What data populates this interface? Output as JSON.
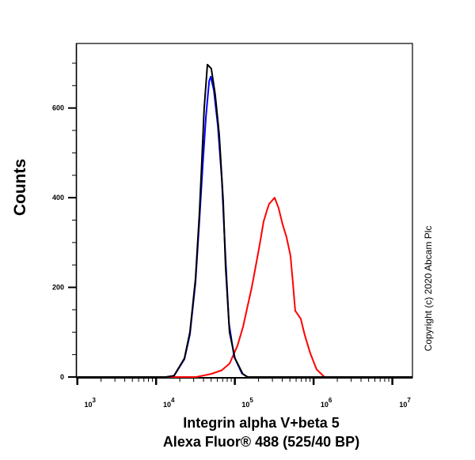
{
  "chart_data": {
    "type": "line",
    "title": "",
    "xlabel": [
      "Integrin alpha V+beta 5",
      "Alexa Fluor® 488  (525/40 BP)"
    ],
    "ylabel": "Counts",
    "xscale": "log",
    "xlim": [
      1000,
      18000000
    ],
    "ylim": [
      0,
      744
    ],
    "x_ticks": [
      {
        "base": "10",
        "exp": "3",
        "value": 1000
      },
      {
        "base": "10",
        "exp": "4",
        "value": 10000
      },
      {
        "base": "10",
        "exp": "5",
        "value": 100000
      },
      {
        "base": "10",
        "exp": "6",
        "value": 1000000
      },
      {
        "base": "10",
        "exp": "7",
        "value": 10000000
      }
    ],
    "y_ticks": [
      {
        "label": "0",
        "value": 0
      },
      {
        "label": "200",
        "value": 200
      },
      {
        "label": "400",
        "value": 400
      },
      {
        "label": "600",
        "value": 600
      }
    ],
    "grid": false,
    "annotation": "Copyright (c) 2020 Abcam Plc",
    "series": [
      {
        "color": "#000000",
        "points": [
          [
            1000,
            0
          ],
          [
            13450,
            0
          ],
          [
            16940,
            3
          ],
          [
            22900,
            42
          ],
          [
            26900,
            100
          ],
          [
            31600,
            218
          ],
          [
            35500,
            365
          ],
          [
            38100,
            483
          ],
          [
            40800,
            599
          ],
          [
            44800,
            697
          ],
          [
            50200,
            688
          ],
          [
            56400,
            629
          ],
          [
            63300,
            541
          ],
          [
            71000,
            394
          ],
          [
            76100,
            247
          ],
          [
            85500,
            100
          ],
          [
            100400,
            42
          ],
          [
            126000,
            7
          ],
          [
            145000,
            0
          ],
          [
            18000000,
            0
          ]
        ]
      },
      {
        "color": "#0000ff",
        "points": [
          [
            1000,
            0
          ],
          [
            13450,
            0
          ],
          [
            16940,
            3
          ],
          [
            22900,
            40
          ],
          [
            26900,
            95
          ],
          [
            31600,
            210
          ],
          [
            35500,
            350
          ],
          [
            39000,
            470
          ],
          [
            42900,
            580
          ],
          [
            47200,
            660
          ],
          [
            49400,
            670
          ],
          [
            54100,
            640
          ],
          [
            60800,
            560
          ],
          [
            68300,
            440
          ],
          [
            75000,
            290
          ],
          [
            84200,
            120
          ],
          [
            98100,
            45
          ],
          [
            123000,
            8
          ],
          [
            145000,
            0
          ],
          [
            18000000,
            0
          ]
        ]
      },
      {
        "color": "#ff0000",
        "points": [
          [
            1000,
            0
          ],
          [
            32400,
            0
          ],
          [
            50400,
            7
          ],
          [
            68000,
            15
          ],
          [
            85700,
            30
          ],
          [
            108000,
            70
          ],
          [
            127000,
            112
          ],
          [
            146000,
            160
          ],
          [
            164000,
            200
          ],
          [
            184000,
            247
          ],
          [
            206000,
            294
          ],
          [
            232000,
            347
          ],
          [
            254000,
            370
          ],
          [
            272000,
            386
          ],
          [
            320000,
            400
          ],
          [
            359000,
            377
          ],
          [
            403000,
            341
          ],
          [
            453000,
            312
          ],
          [
            508000,
            271
          ],
          [
            545000,
            212
          ],
          [
            584000,
            148
          ],
          [
            687000,
            130
          ],
          [
            771000,
            94
          ],
          [
            906000,
            53
          ],
          [
            1090000,
            17
          ],
          [
            1373000,
            0
          ],
          [
            18000000,
            0
          ]
        ]
      }
    ]
  }
}
